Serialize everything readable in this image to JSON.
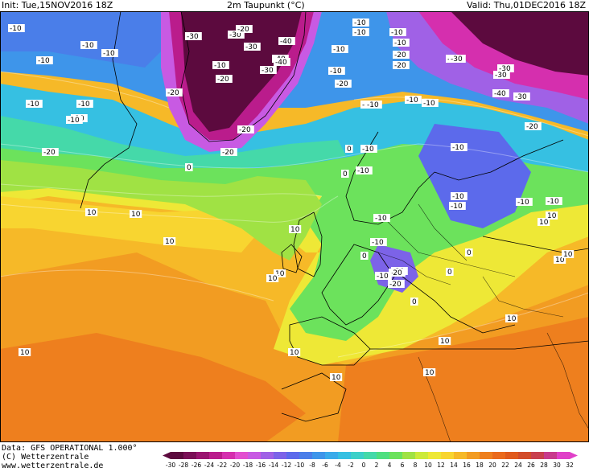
{
  "header": {
    "init": "Init: Tue,15NOV2016 18Z",
    "title": "2m Taupunkt (°C)",
    "valid": "Valid: Thu,01DEC2016 18Z"
  },
  "footer": {
    "data_line": "Data: GFS OPERATIONAL 1.000°",
    "copyright_line": "(C) Wetterzentrale",
    "url_line": "www.wetterzentrale.de"
  },
  "legend": {
    "ticks": [
      "-30",
      "-28",
      "-26",
      "-24",
      "-22",
      "-20",
      "-18",
      "-16",
      "-14",
      "-12",
      "-10",
      "-8",
      "-6",
      "-4",
      "-2",
      "0",
      "2",
      "4",
      "6",
      "8",
      "10",
      "12",
      "14",
      "16",
      "18",
      "20",
      "22",
      "24",
      "26",
      "28",
      "30",
      "32"
    ],
    "colors": [
      "#5c0a3e",
      "#7a0f56",
      "#9a1470",
      "#ba1c8c",
      "#d52fae",
      "#e24fd0",
      "#c85ae3",
      "#a061e6",
      "#7c63e8",
      "#5c6aeb",
      "#4a7ee9",
      "#3e95ea",
      "#3aabea",
      "#36c0e2",
      "#3dd0c9",
      "#45d9a9",
      "#4fdf80",
      "#6ce25c",
      "#a0e244",
      "#ccea3a",
      "#eee836",
      "#f8d530",
      "#f6b928",
      "#f29c22",
      "#ee7f1e",
      "#ea6a1c",
      "#e05a1c",
      "#d24c2a",
      "#c8404e",
      "#c83a8c",
      "#e040c8"
    ]
  },
  "map": {
    "contour_labels": [
      "-10",
      "-10",
      "-20",
      "-10",
      "-10",
      "-10",
      "-10",
      "-10",
      "-10",
      "-20",
      "-30",
      "-30",
      "-20",
      "-20",
      "-30",
      "-30",
      "-40",
      "-40",
      "-40",
      "-20",
      "-20",
      "-10",
      "-10",
      "-10",
      "-10",
      "-10",
      "-20",
      "-20",
      "-30",
      "-30",
      "-30",
      "-40",
      "-30",
      "-10",
      "-10",
      "-20",
      "-10",
      "-20",
      "-30",
      "-10",
      "-20",
      "-10",
      "-10",
      "-10",
      "-10",
      "-10",
      "-10",
      "-10",
      "-20",
      "-10",
      "-10",
      "-10",
      "-10",
      "-20",
      "-10",
      "0",
      "0",
      "0",
      "0",
      "0",
      "0",
      "0",
      "10",
      "10",
      "10",
      "10",
      "10",
      "10",
      "10",
      "10",
      "10",
      "10",
      "10",
      "10",
      "10",
      "10",
      "10",
      "10"
    ]
  }
}
